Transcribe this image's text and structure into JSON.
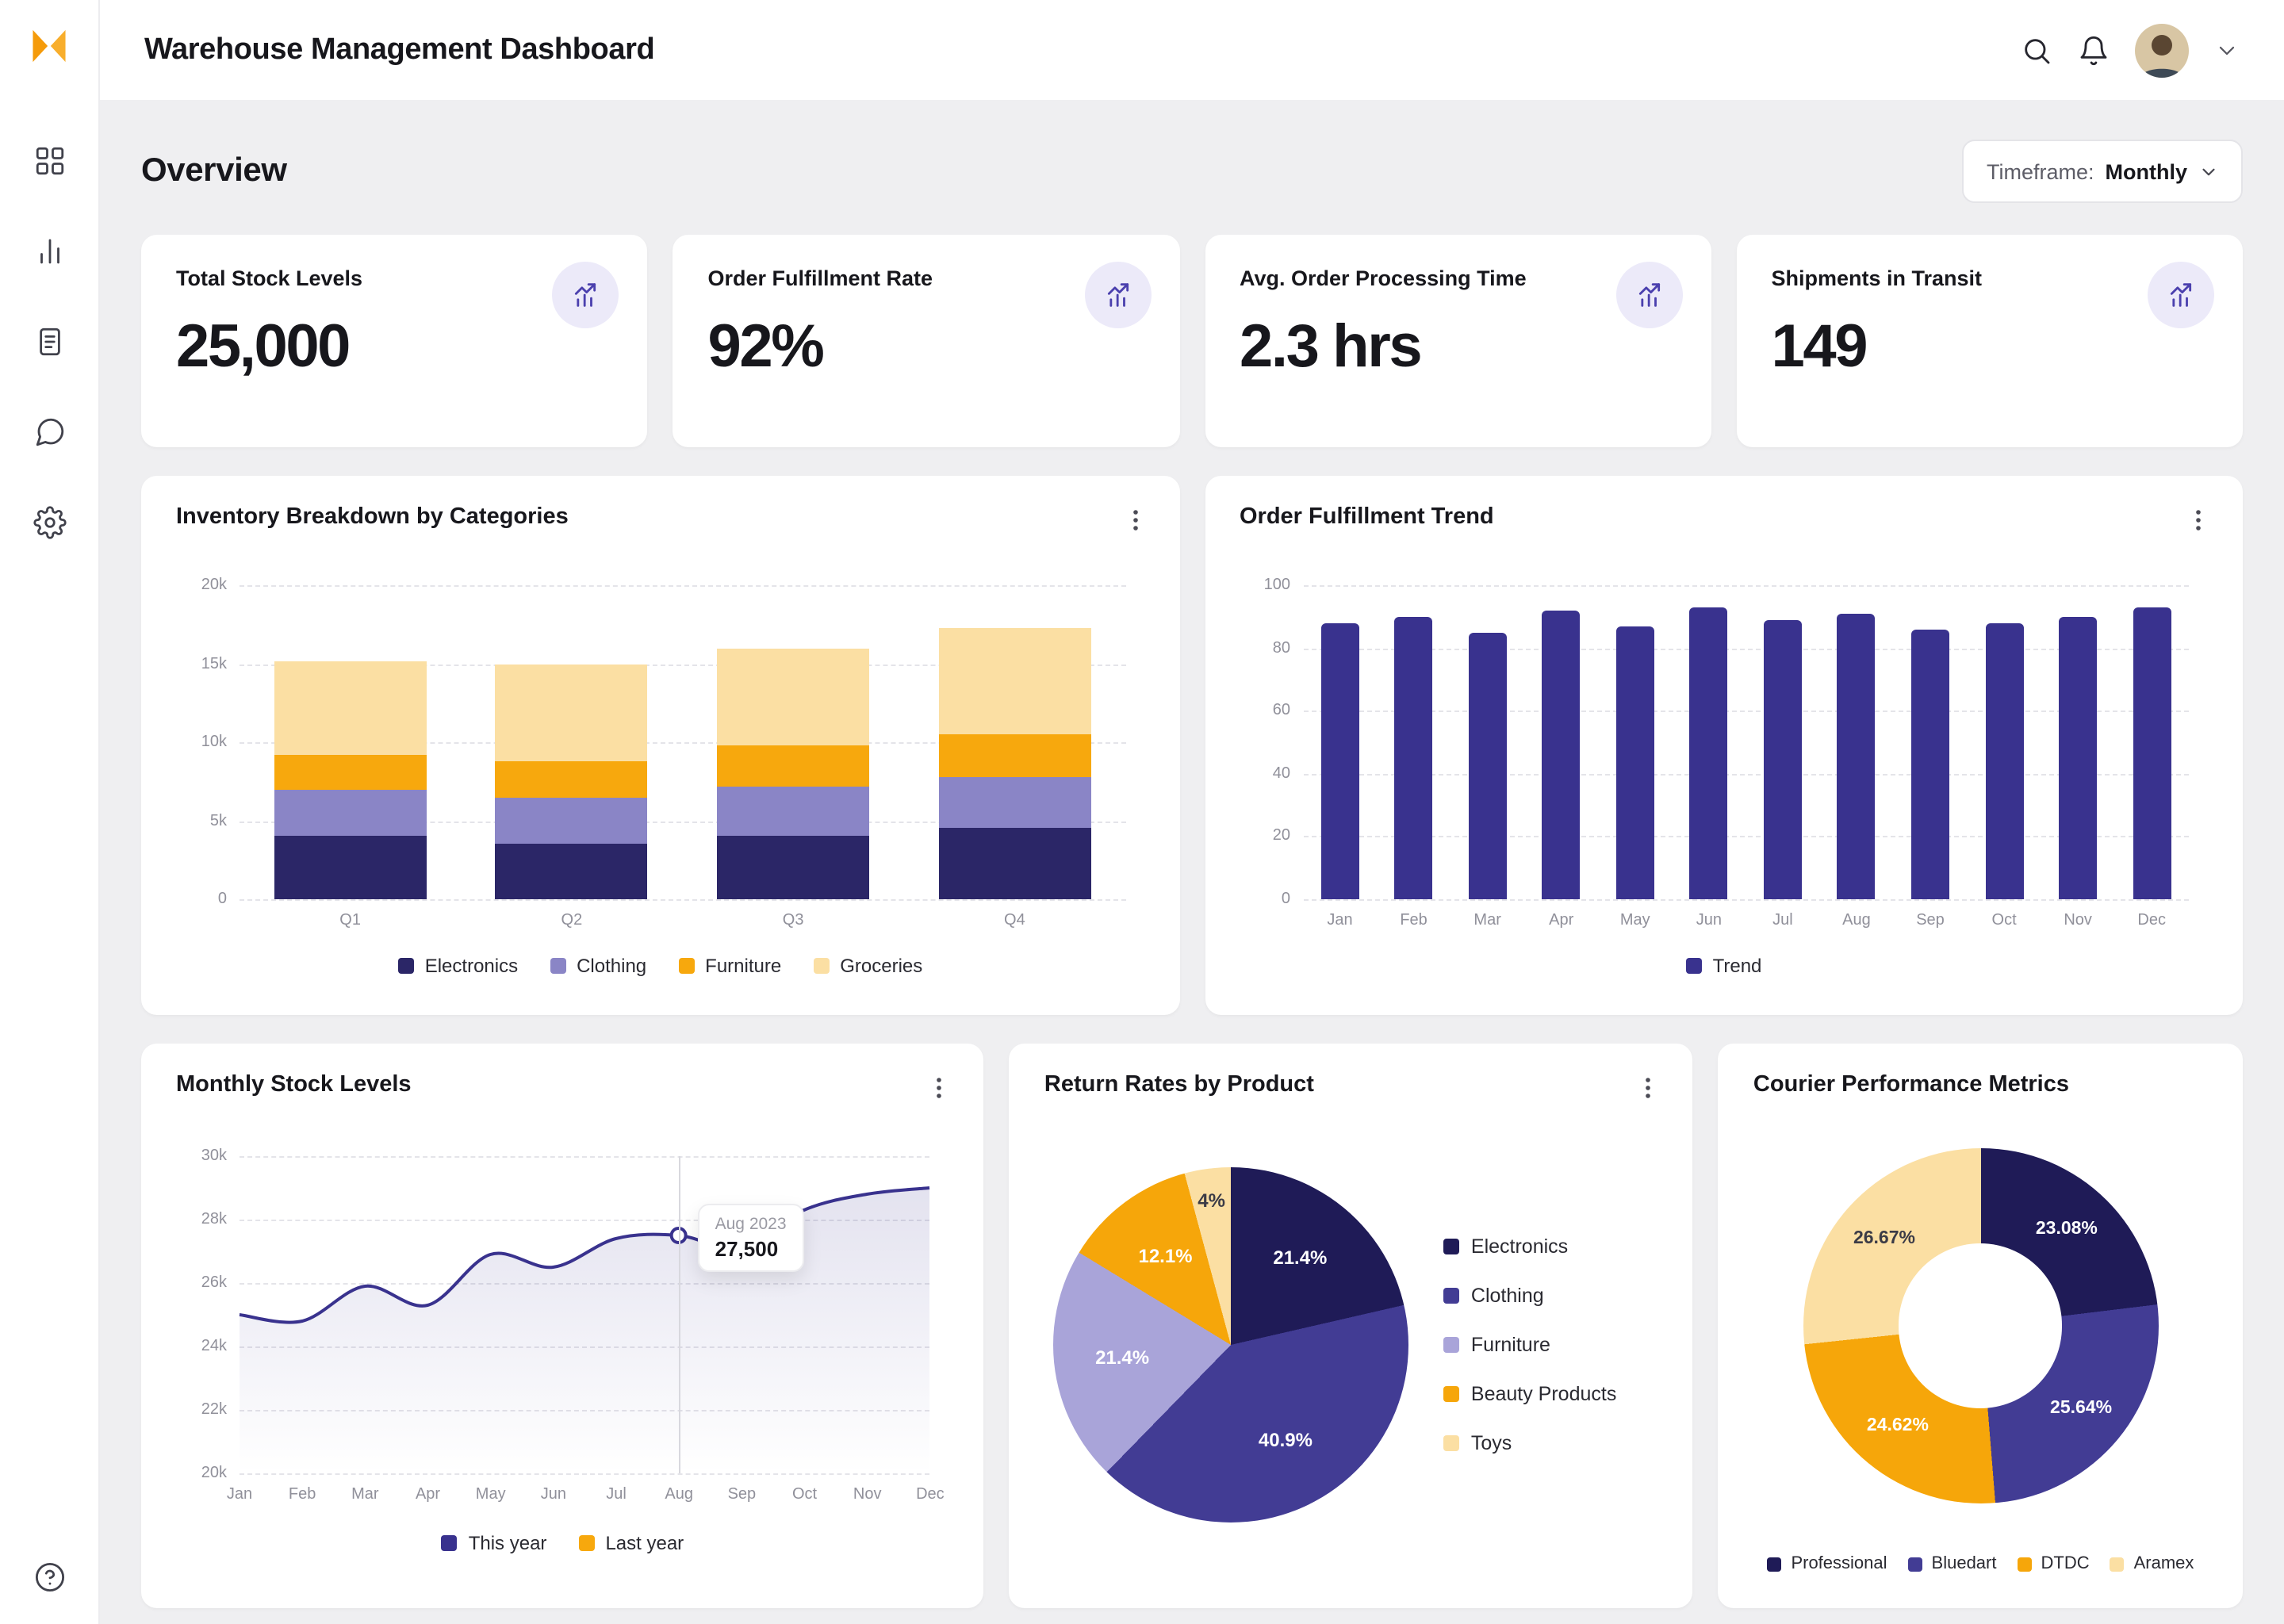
{
  "app": {
    "title": "Warehouse Management Dashboard"
  },
  "overview": {
    "title": "Overview",
    "timeframe_label": "Timeframe:",
    "timeframe_value": "Monthly"
  },
  "sidebar": {
    "icons": [
      "x-logo-icon",
      "grid-icon",
      "bar-chart-icon",
      "document-icon",
      "chat-icon",
      "settings-icon",
      "help-icon"
    ]
  },
  "header_icons": [
    "search-icon",
    "bell-icon",
    "avatar",
    "chevron-down-icon"
  ],
  "kpis": [
    {
      "label": "Total Stock Levels",
      "value": "25,000",
      "icon": "trending-up-icon"
    },
    {
      "label": "Order Fulfillment Rate",
      "value": "92%",
      "icon": "trending-up-icon"
    },
    {
      "label": "Avg. Order Processing Time",
      "value": "2.3 hrs",
      "icon": "trending-up-icon"
    },
    {
      "label": "Shipments in Transit",
      "value": "149",
      "icon": "trending-up-icon"
    }
  ],
  "colors": {
    "accent_orange": "#F59B0A",
    "indigo_darkest": "#1F1B57",
    "indigo_dark": "#2B2667",
    "indigo": "#39328E",
    "purple_light": "#8A85C6",
    "lavender_lighter": "#A9A4D9",
    "orange": "#F6A60A",
    "pale_yellow": "#FBDFA3",
    "kpi_icon_bg": "#ECEAF9",
    "page_bg": "#EFEFF1"
  },
  "chart_data": [
    {
      "id": "inventory_breakdown",
      "type": "bar",
      "stacked": true,
      "title": "Inventory Breakdown by Categories",
      "categories": [
        "Q1",
        "Q2",
        "Q3",
        "Q4"
      ],
      "series": [
        {
          "name": "Electronics",
          "color": "#2B2667",
          "values": [
            4000,
            3500,
            4000,
            4500
          ]
        },
        {
          "name": "Clothing",
          "color": "#8A85C6",
          "values": [
            3000,
            3000,
            3200,
            3300
          ]
        },
        {
          "name": "Furniture",
          "color": "#F7A80D",
          "values": [
            2200,
            2300,
            2600,
            2700
          ]
        },
        {
          "name": "Groceries",
          "color": "#FBDFA3",
          "values": [
            6000,
            6200,
            6200,
            6800
          ]
        }
      ],
      "ylim": [
        0,
        20000
      ],
      "yticks": [
        "20k",
        "15k",
        "10k",
        "5k",
        "0"
      ],
      "grid": true,
      "legend_position": "bottom"
    },
    {
      "id": "order_fulfillment_trend",
      "type": "bar",
      "title": "Order Fulfillment Trend",
      "categories": [
        "Jan",
        "Feb",
        "Mar",
        "Apr",
        "May",
        "Jun",
        "Jul",
        "Aug",
        "Sep",
        "Oct",
        "Nov",
        "Dec"
      ],
      "series": [
        {
          "name": "Trend",
          "color": "#39328E",
          "values": [
            88,
            90,
            85,
            92,
            87,
            93,
            89,
            91,
            86,
            88,
            90,
            93
          ]
        }
      ],
      "ylim": [
        0,
        100
      ],
      "yticks": [
        "100",
        "80",
        "60",
        "40",
        "20",
        "0"
      ],
      "grid": true,
      "legend_position": "bottom"
    },
    {
      "id": "monthly_stock_levels",
      "type": "line",
      "title": "Monthly Stock Levels",
      "x": [
        "Jan",
        "Feb",
        "Mar",
        "Apr",
        "May",
        "Jun",
        "Jul",
        "Aug",
        "Sep",
        "Oct",
        "Nov",
        "Dec"
      ],
      "series": [
        {
          "name": "This year",
          "color": "#39328E",
          "values": [
            25000,
            24800,
            25900,
            25300,
            26900,
            26500,
            27400,
            27500,
            27100,
            28300,
            28800,
            29000
          ]
        }
      ],
      "legend": [
        {
          "label": "This year",
          "color": "#39328E"
        },
        {
          "label": "Last year",
          "color": "#F7A80D"
        }
      ],
      "ylim": [
        20000,
        30000
      ],
      "yticks": [
        "30k",
        "28k",
        "26k",
        "24k",
        "22k",
        "20k"
      ],
      "grid": true,
      "tooltip": {
        "label": "Aug 2023",
        "value": "27,500",
        "index": 7
      }
    },
    {
      "id": "return_rates_by_product",
      "type": "pie",
      "title": "Return Rates by Product",
      "slices": [
        {
          "label": "Electronics",
          "pct": 21.4,
          "display": "21.4%",
          "color": "#1F1B57"
        },
        {
          "label": "Clothing",
          "pct": 40.9,
          "display": "40.9%",
          "color": "#423C94"
        },
        {
          "label": "Furniture",
          "pct": 21.4,
          "display": "21.4%",
          "color": "#A9A4D9"
        },
        {
          "label": "Beauty Products",
          "pct": 12.1,
          "display": "12.1%",
          "color": "#F6A60A"
        },
        {
          "label": "Toys",
          "pct": 4.0,
          "display": "4%",
          "color": "#FBDFA3"
        }
      ],
      "legend_position": "right"
    },
    {
      "id": "courier_performance_metrics",
      "type": "pie",
      "donut": true,
      "title": "Courier Performance Metrics",
      "slices": [
        {
          "label": "Professional",
          "pct": 23.08,
          "display": "23.08%",
          "color": "#1F1B57"
        },
        {
          "label": "Bluedart",
          "pct": 25.64,
          "display": "25.64%",
          "color": "#423C94"
        },
        {
          "label": "DTDC",
          "pct": 24.62,
          "display": "24.62%",
          "color": "#F6A60A"
        },
        {
          "label": "Aramex",
          "pct": 26.67,
          "display": "26.67%",
          "color": "#FBDFA3"
        }
      ],
      "legend_position": "bottom"
    }
  ]
}
